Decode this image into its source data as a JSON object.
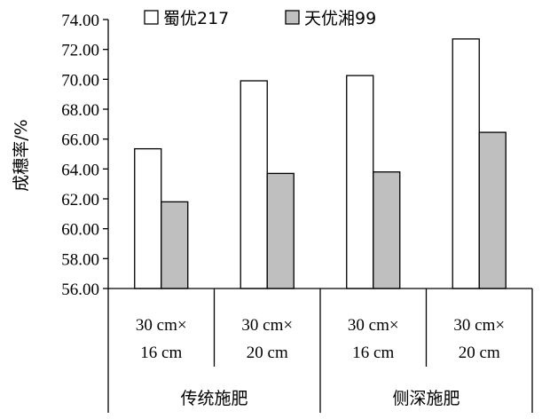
{
  "chart_data": {
    "type": "bar",
    "ylabel": "成穗率/%",
    "ylim": [
      56,
      74
    ],
    "ytick_step": 2,
    "grid": false,
    "legend_position": "top",
    "groups": [
      {
        "label": "传统施肥",
        "categories": [
          [
            "30 cm×",
            "16 cm"
          ],
          [
            "30 cm×",
            "20 cm"
          ]
        ]
      },
      {
        "label": "侧深施肥",
        "categories": [
          [
            "30 cm×",
            "16 cm"
          ],
          [
            "30 cm×",
            "20 cm"
          ]
        ]
      }
    ],
    "series": [
      {
        "name": "蜀优217",
        "color": "#ffffff",
        "values": [
          65.35,
          69.9,
          70.25,
          72.7
        ]
      },
      {
        "name": "天优湘99",
        "color": "#bfbfbf",
        "values": [
          61.8,
          63.7,
          63.8,
          66.45
        ]
      }
    ]
  }
}
